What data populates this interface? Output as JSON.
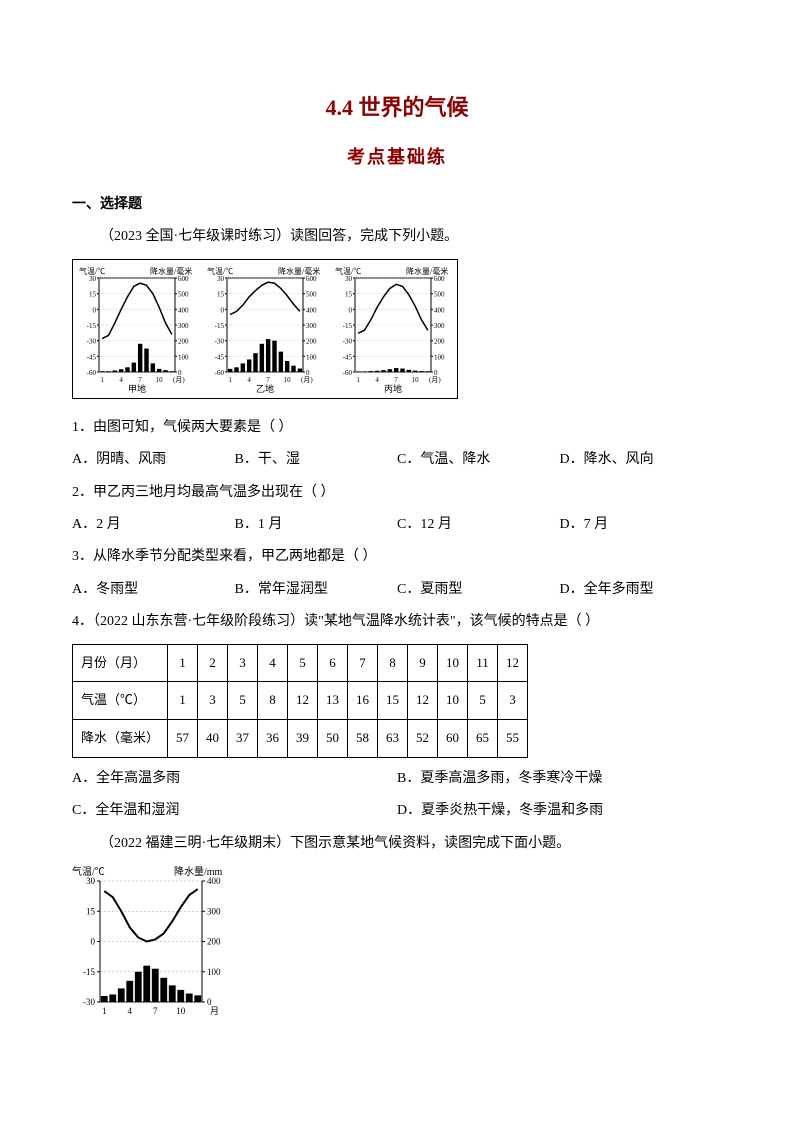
{
  "title_main": "4.4 世界的气候",
  "title_sub": "考点基础练",
  "section1": "一、选择题",
  "intro1": "（2023 全国·七年级课时练习）读图回答，完成下列小题。",
  "charts": [
    {
      "label": "甲地",
      "left_title": "气温/℃",
      "right_title": "降水量/毫米",
      "y_left": [
        30,
        15,
        0,
        -15,
        -30,
        -45,
        -60
      ],
      "y_right": [
        600,
        500,
        400,
        300,
        200,
        100,
        0
      ],
      "x_ticks": [
        1,
        4,
        7,
        10
      ],
      "x_label": "(月)",
      "temp_curve": [
        -28,
        -25,
        -13,
        0,
        12,
        22,
        25,
        23,
        15,
        2,
        -13,
        -24
      ],
      "precip_bars": [
        5,
        5,
        10,
        18,
        30,
        60,
        180,
        150,
        55,
        20,
        12,
        5
      ],
      "line_color": "#000000",
      "bar_color": "#000000",
      "grid": true
    },
    {
      "label": "乙地",
      "left_title": "气温/℃",
      "right_title": "降水量/毫米",
      "y_left": [
        30,
        15,
        0,
        -15,
        -30,
        -45,
        -60
      ],
      "y_right": [
        600,
        500,
        400,
        300,
        200,
        100,
        0
      ],
      "x_ticks": [
        1,
        4,
        7,
        10
      ],
      "x_label": "(月)",
      "temp_curve": [
        -5,
        -2,
        4,
        12,
        18,
        23,
        26,
        25,
        20,
        13,
        5,
        -2
      ],
      "precip_bars": [
        20,
        30,
        55,
        80,
        120,
        180,
        210,
        200,
        130,
        70,
        40,
        22
      ],
      "line_color": "#000000",
      "bar_color": "#000000",
      "grid": true
    },
    {
      "label": "丙地",
      "left_title": "气温/℃",
      "right_title": "降水量/毫米",
      "y_left": [
        30,
        15,
        0,
        -15,
        -30,
        -45,
        -60
      ],
      "y_right": [
        600,
        500,
        400,
        300,
        200,
        100,
        0
      ],
      "x_ticks": [
        1,
        4,
        7,
        10
      ],
      "x_label": "(月)",
      "temp_curve": [
        -23,
        -20,
        -10,
        2,
        12,
        20,
        24,
        22,
        14,
        3,
        -10,
        -20
      ],
      "precip_bars": [
        4,
        4,
        6,
        8,
        12,
        18,
        25,
        22,
        14,
        9,
        6,
        5
      ],
      "line_color": "#000000",
      "bar_color": "#000000",
      "grid": true
    }
  ],
  "q1": "1．由图可知，气候两大要素是（   ）",
  "q1o": {
    "A": "A．阴晴、风雨",
    "B": "B．干、湿",
    "C": "C．气温、降水",
    "D": "D．降水、风向"
  },
  "q2": "2．甲乙丙三地月均最高气温多出现在（   ）",
  "q2o": {
    "A": "A．2 月",
    "B": "B．1 月",
    "C": "C．12 月",
    "D": "D．7 月"
  },
  "q3": "3．从降水季节分配类型来看，甲乙两地都是（   ）",
  "q3o": {
    "A": "A．冬雨型",
    "B": "B．常年湿润型",
    "C": "C．夏雨型",
    "D": "D．全年多雨型"
  },
  "q4": "4．（2022 山东东营·七年级阶段练习）读\"某地气温降水统计表\"，该气候的特点是（   ）",
  "table": {
    "headers": [
      "月份（月）",
      "气温（℃）",
      "降水（毫米）"
    ],
    "months": [
      1,
      2,
      3,
      4,
      5,
      6,
      7,
      8,
      9,
      10,
      11,
      12
    ],
    "temp": [
      1,
      3,
      5,
      8,
      12,
      13,
      16,
      15,
      12,
      10,
      5,
      3
    ],
    "precip": [
      57,
      40,
      37,
      36,
      39,
      50,
      58,
      63,
      52,
      60,
      65,
      55
    ]
  },
  "q4o": {
    "A": "A．全年高温多雨",
    "B": "B．夏季高温多雨，冬季寒冷干燥",
    "C": "C．全年温和湿润",
    "D": "D．夏季炎热干燥，冬季温和多雨"
  },
  "intro2": "（2022 福建三明·七年级期末）下图示意某地气候资料，读图完成下面小题。",
  "bottom_chart": {
    "left_title": "气温/℃",
    "right_title": "降水量/mm",
    "y_left": [
      30,
      15,
      0,
      -15,
      -30
    ],
    "y_right": [
      400,
      300,
      200,
      100,
      0
    ],
    "x_ticks": [
      1,
      4,
      7,
      10
    ],
    "x_label": "月",
    "temp_curve": [
      25,
      22,
      15,
      7,
      2,
      0,
      1,
      4,
      10,
      17,
      23,
      26
    ],
    "precip_bars": [
      20,
      25,
      45,
      70,
      100,
      120,
      110,
      80,
      55,
      40,
      28,
      22
    ],
    "line_color": "#000000",
    "bar_color": "#000000",
    "bg": "#ffffff",
    "grid_color": "#888888"
  }
}
